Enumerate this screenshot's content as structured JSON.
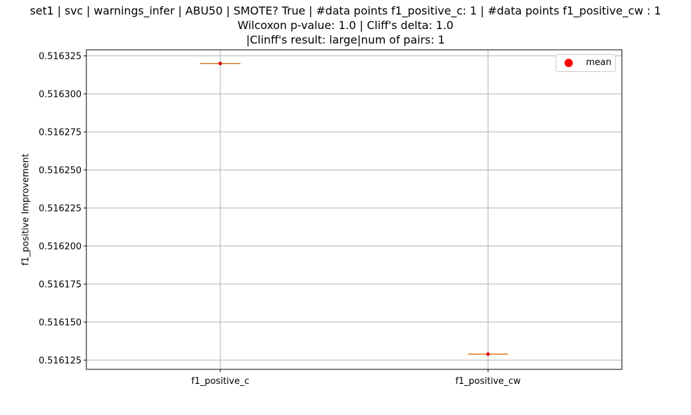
{
  "chart_data": {
    "type": "box",
    "title_lines": [
      "set1 | svc | warnings_infer | ABU50 | SMOTE? True | #data points f1_positive_c: 1 | #data points f1_positive_cw : 1",
      "Wilcoxon p-value: 1.0 | Cliff's delta: 1.0",
      "|Clinff's result: large|num of pairs: 1"
    ],
    "ylabel": "f1_positive Improvement",
    "xlabel": "",
    "categories": [
      "f1_positive_c",
      "f1_positive_cw"
    ],
    "values": [
      0.51632,
      0.516129
    ],
    "means": [
      0.51632,
      0.516129
    ],
    "ylim": [
      0.516119,
      0.516329
    ],
    "yticks": [
      0.516125,
      0.51615,
      0.516175,
      0.5162,
      0.516225,
      0.51625,
      0.516275,
      0.5163,
      0.516325
    ],
    "ytick_labels": [
      "0.516125",
      "0.516150",
      "0.516175",
      "0.516200",
      "0.516225",
      "0.516250",
      "0.516275",
      "0.516300",
      "0.516325"
    ],
    "grid": true,
    "legend": {
      "position": "top-right",
      "entries": [
        {
          "label": "mean",
          "marker": "circle",
          "color": "#ff0000"
        }
      ]
    },
    "colors": {
      "median": "#ff7f0e",
      "mean": "#ff0000",
      "box": "#000000",
      "grid": "#b0b0b0"
    }
  }
}
